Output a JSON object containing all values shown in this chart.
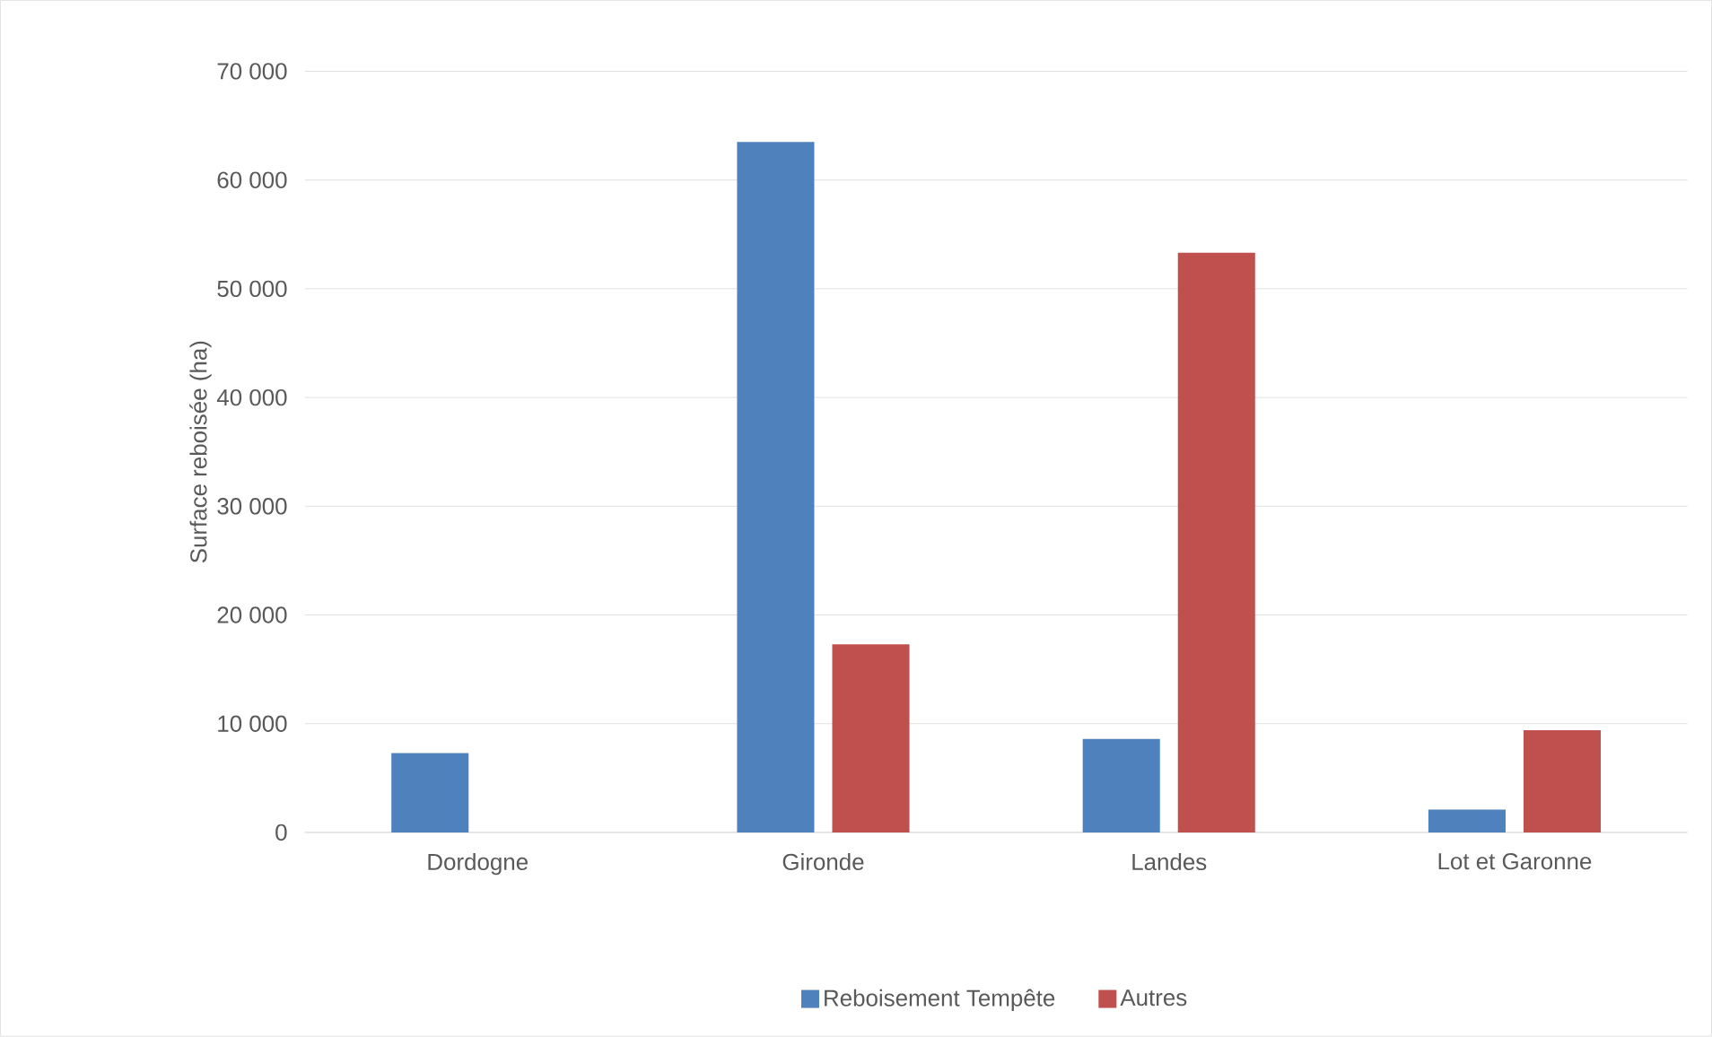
{
  "chart_data": {
    "type": "bar",
    "ylabel": "Surface reboisée (ha)",
    "categories": [
      "Dordogne",
      "Gironde",
      "Landes",
      "Lot et Garonne"
    ],
    "series": [
      {
        "name": "Reboisement Tempête",
        "color": "#4f81bd",
        "values": [
          7300,
          63500,
          8600,
          2100
        ]
      },
      {
        "name": "Autres",
        "color": "#c0504d",
        "values": [
          null,
          17300,
          53300,
          9400
        ]
      }
    ],
    "ylim": [
      0,
      70000
    ],
    "yticks": [
      {
        "value": 0,
        "label": "0"
      },
      {
        "value": 10000,
        "label": "10 000"
      },
      {
        "value": 20000,
        "label": "20 000"
      },
      {
        "value": 30000,
        "label": "30 000"
      },
      {
        "value": 40000,
        "label": "40 000"
      },
      {
        "value": 50000,
        "label": "50 000"
      },
      {
        "value": 60000,
        "label": "60 000"
      },
      {
        "value": 70000,
        "label": "70 000"
      }
    ],
    "grid": "y",
    "legend": "bottom"
  }
}
